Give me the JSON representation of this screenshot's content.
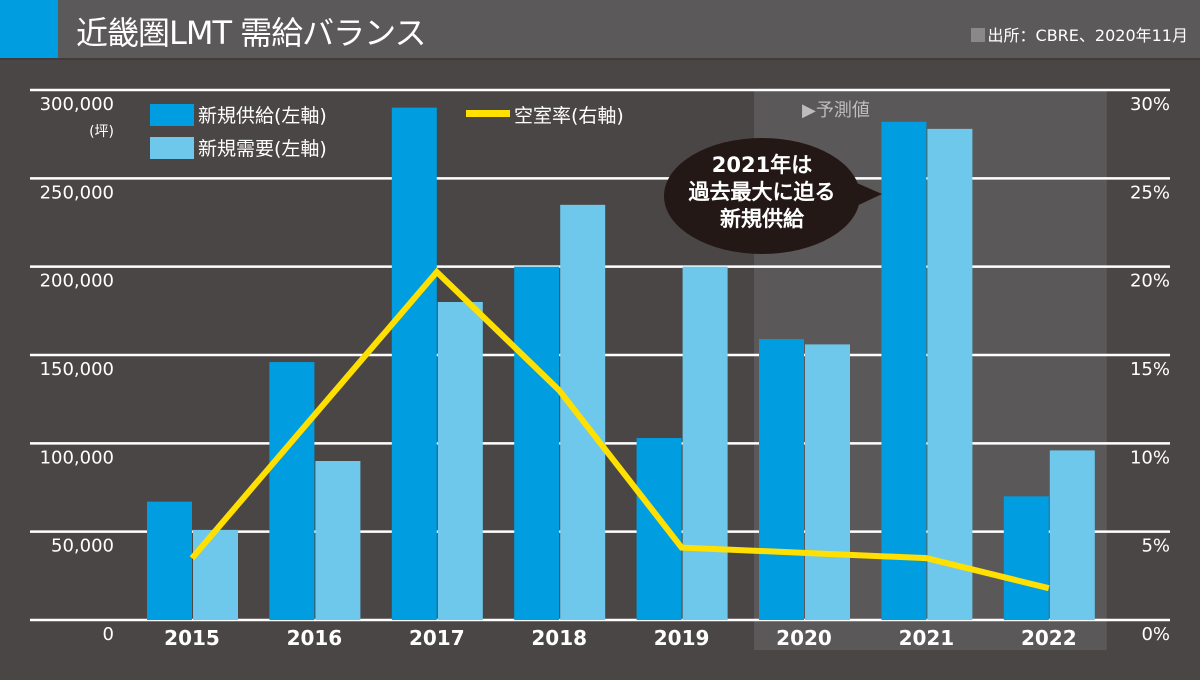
{
  "header": {
    "title": "近畿圏LMT 需給バランス",
    "source": "出所：CBRE、2020年11月",
    "accent_color": "#009ee0"
  },
  "chart_data": {
    "type": "bar+line",
    "title": "近畿圏LMT 需給バランス",
    "categories": [
      "2015",
      "2016",
      "2017",
      "2018",
      "2019",
      "2020",
      "2021",
      "2022"
    ],
    "series": [
      {
        "name": "新規供給(左軸)",
        "type": "bar",
        "axis": "left",
        "color": "#009ee0",
        "values": [
          67000,
          146000,
          290000,
          200000,
          103000,
          159000,
          282000,
          70000
        ]
      },
      {
        "name": "新規需要(左軸)",
        "type": "bar",
        "axis": "left",
        "color": "#6ec8ec",
        "values": [
          51000,
          90000,
          180000,
          235000,
          200000,
          156000,
          278000,
          96000
        ]
      },
      {
        "name": "空室率(右軸)",
        "type": "line",
        "axis": "right",
        "color": "#ffe000",
        "values": [
          3.5,
          11.6,
          19.7,
          13.0,
          4.1,
          3.8,
          3.5,
          1.8
        ]
      }
    ],
    "left_axis": {
      "unit": "(坪)",
      "ylim": [
        0,
        300000
      ],
      "ticks": [
        "0",
        "50,000",
        "100,000",
        "150,000",
        "200,000",
        "250,000",
        "300,000"
      ]
    },
    "right_axis": {
      "ylim": [
        0,
        30
      ],
      "ticks": [
        "0%",
        "5%",
        "10%",
        "15%",
        "20%",
        "25%",
        "30%"
      ]
    },
    "forecast": {
      "label": "▶予測値",
      "from": "2020",
      "to": "2022"
    },
    "annotation": {
      "lines": [
        "2021年は",
        "過去最大に迫る",
        "新規供給"
      ],
      "target": "2021"
    },
    "grid": true,
    "legend_placement": "top-left"
  }
}
